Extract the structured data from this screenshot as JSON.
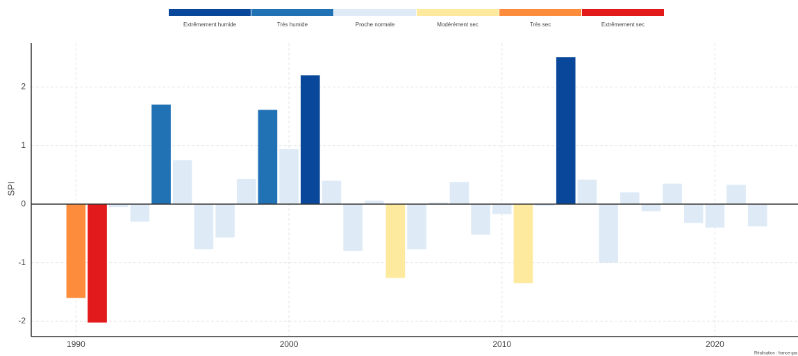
{
  "chart_data": {
    "type": "bar",
    "y_label": "SPI",
    "caption": "Réalisation : france-gra",
    "legend": [
      {
        "label": "Extrêmement humide",
        "color": "#08479a"
      },
      {
        "label": "Très humide",
        "color": "#2171b5"
      },
      {
        "label": "Proche normale",
        "color": "#deebf7"
      },
      {
        "label": "Modérément sec",
        "color": "#feea9e"
      },
      {
        "label": "Très sec",
        "color": "#fd8d3c"
      },
      {
        "label": "Extrêmement sec",
        "color": "#e31a1c"
      }
    ],
    "x": [
      1990,
      1991,
      1992,
      1993,
      1994,
      1995,
      1996,
      1997,
      1998,
      1999,
      2000,
      2001,
      2002,
      2003,
      2004,
      2005,
      2006,
      2007,
      2008,
      2009,
      2010,
      2011,
      2012,
      2013,
      2014,
      2015,
      2016,
      2017,
      2018,
      2019,
      2020,
      2021,
      2022
    ],
    "values": [
      -1.6,
      -2.02,
      -0.05,
      -0.3,
      1.7,
      0.75,
      -0.77,
      -0.57,
      0.43,
      1.61,
      0.94,
      2.2,
      0.4,
      -0.8,
      0.06,
      -1.26,
      -0.77,
      0.03,
      0.38,
      -0.52,
      -0.17,
      -1.35,
      -0.03,
      2.51,
      0.42,
      -1.0,
      0.2,
      -0.12,
      0.35,
      -0.32,
      -0.4,
      0.33,
      -0.38
    ],
    "colors": [
      "#fd8d3c",
      "#e31a1c",
      "#deebf7",
      "#deebf7",
      "#2171b5",
      "#deebf7",
      "#deebf7",
      "#deebf7",
      "#deebf7",
      "#2171b5",
      "#deebf7",
      "#08479a",
      "#deebf7",
      "#deebf7",
      "#deebf7",
      "#feea9e",
      "#deebf7",
      "#deebf7",
      "#deebf7",
      "#deebf7",
      "#deebf7",
      "#feea9e",
      "#deebf7",
      "#08479a",
      "#deebf7",
      "#deebf7",
      "#deebf7",
      "#deebf7",
      "#deebf7",
      "#deebf7",
      "#deebf7",
      "#deebf7",
      "#deebf7"
    ],
    "xlim": [
      1987.9,
      2023.9
    ],
    "xticks": [
      1990,
      2000,
      2010,
      2020
    ],
    "ylim": [
      -2.26,
      2.75
    ],
    "yticks": [
      -2,
      -1,
      0,
      1,
      2
    ],
    "grid": true
  }
}
